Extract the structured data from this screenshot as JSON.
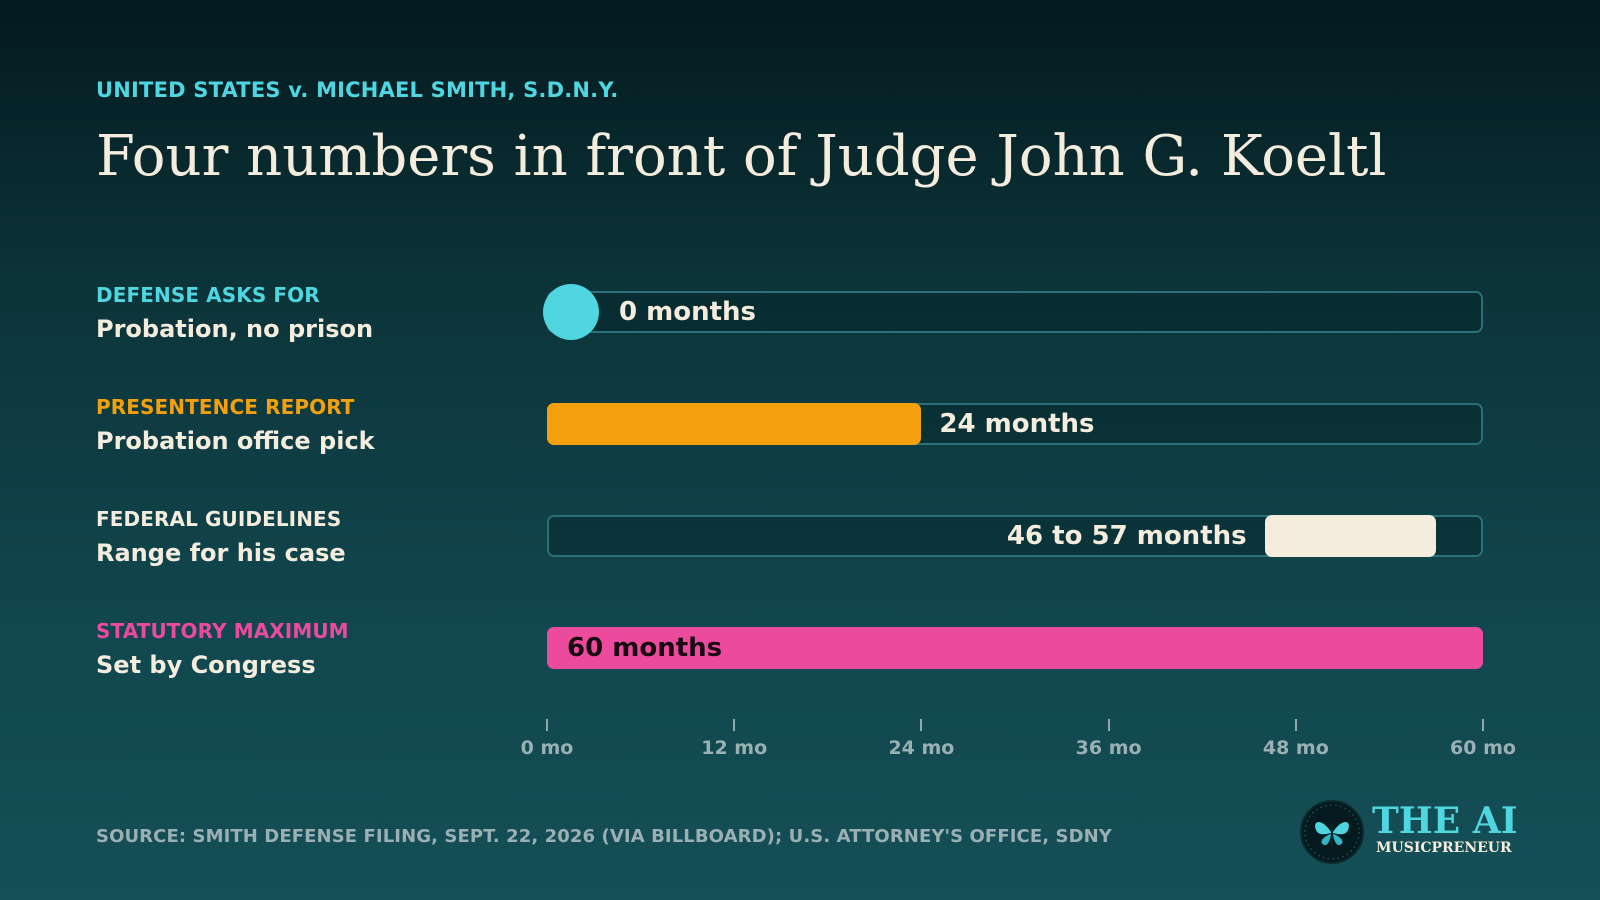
{
  "header": {
    "kicker": "UNITED STATES v. MICHAEL SMITH, S.D.N.Y.",
    "title": "Four numbers in front of Judge John G. Koeltl"
  },
  "chart_data": {
    "type": "bar",
    "orientation": "horizontal",
    "xlim": [
      0,
      60
    ],
    "x_ticks": [
      0,
      12,
      24,
      36,
      48,
      60
    ],
    "x_tick_labels": [
      "0 mo",
      "12 mo",
      "24 mo",
      "36 mo",
      "48 mo",
      "60 mo"
    ],
    "grid": false,
    "legend": "none",
    "rows": [
      {
        "category": "DEFENSE ASKS FOR",
        "description": "Probation, no prison",
        "value_label": "0 months",
        "start": 0,
        "end": 0,
        "color": "#4fd6e0",
        "label_color": "#f4ecdc"
      },
      {
        "category": "PRESENTENCE REPORT",
        "description": "Probation office pick",
        "value_label": "24 months",
        "start": 0,
        "end": 24,
        "color": "#f4a00d",
        "label_color": "#f4ecdc"
      },
      {
        "category": "FEDERAL GUIDELINES",
        "description": "Range for his case",
        "value_label": "46 to 57 months",
        "start": 46,
        "end": 57,
        "color": "#f4ecdc",
        "label_color": "#f4ecdc"
      },
      {
        "category": "STATUTORY MAXIMUM",
        "description": "Set by Congress",
        "value_label": "60 months",
        "start": 0,
        "end": 60,
        "color": "#ec4a9c",
        "label_color": "#1a0a12"
      }
    ]
  },
  "category_colors": [
    "#4fd6e0",
    "#f4a00d",
    "#f4ecdc",
    "#ec4a9c"
  ],
  "footer": {
    "source": "SOURCE: SMITH DEFENSE FILING, SEPT. 22, 2026 (VIA BILLBOARD); U.S. ATTORNEY'S OFFICE, SDNY"
  },
  "logo": {
    "line1": "THE AI",
    "line2": "MUSICPRENEUR",
    "icon": "butterfly-icon"
  }
}
